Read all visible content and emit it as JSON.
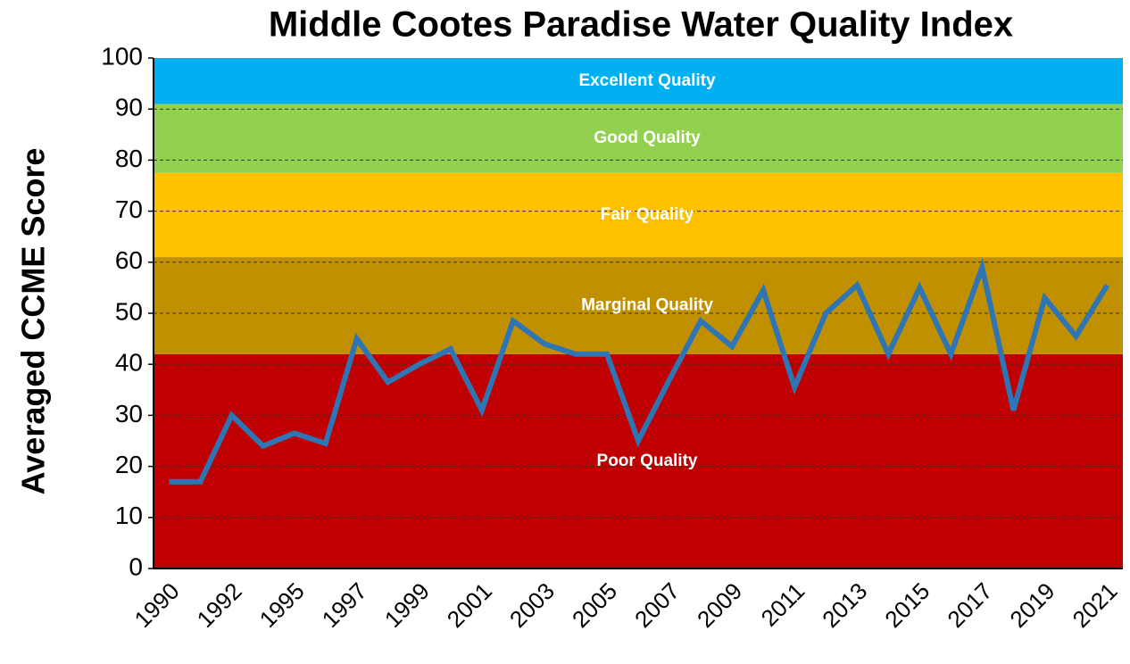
{
  "chart_data": {
    "type": "line",
    "title": "Middle Cootes Paradise Water Quality Index",
    "y_label": "Averaged CCME Score",
    "categories": [
      "1990",
      null,
      "1992",
      null,
      "1995",
      null,
      "1997",
      null,
      "1999",
      null,
      "2001",
      null,
      "2003",
      null,
      "2005",
      null,
      "2007",
      null,
      "2009",
      null,
      "2011",
      null,
      "2013",
      null,
      "2015",
      null,
      "2017",
      null,
      "2019",
      null,
      "2021"
    ],
    "series": [
      {
        "name": "Averaged CCME Score",
        "color": "#2e75b6",
        "values": [
          17,
          17,
          30,
          24,
          26.5,
          24.5,
          45,
          36.5,
          40,
          43,
          31,
          48.5,
          44,
          42,
          42,
          25,
          37,
          48.5,
          43.5,
          54.5,
          35.5,
          50,
          55.5,
          42,
          55,
          42,
          59,
          31,
          53,
          45.5,
          55.5
        ]
      }
    ],
    "bands": [
      {
        "label": "Poor Quality",
        "from": 0,
        "to": 42,
        "color": "#c00000"
      },
      {
        "label": "Marginal Quality",
        "from": 42,
        "to": 61,
        "color": "#c09000"
      },
      {
        "label": "Fair Quality",
        "from": 61,
        "to": 77.5,
        "color": "#ffc000"
      },
      {
        "label": "Good Quality",
        "from": 77.5,
        "to": 91,
        "color": "#92d050"
      },
      {
        "label": "Excellent Quality",
        "from": 91,
        "to": 100,
        "color": "#00b0f0"
      }
    ],
    "ylim": [
      0,
      100
    ],
    "yticks": [
      0,
      10,
      20,
      30,
      40,
      50,
      60,
      70,
      80,
      90,
      100
    ],
    "grid": true
  }
}
